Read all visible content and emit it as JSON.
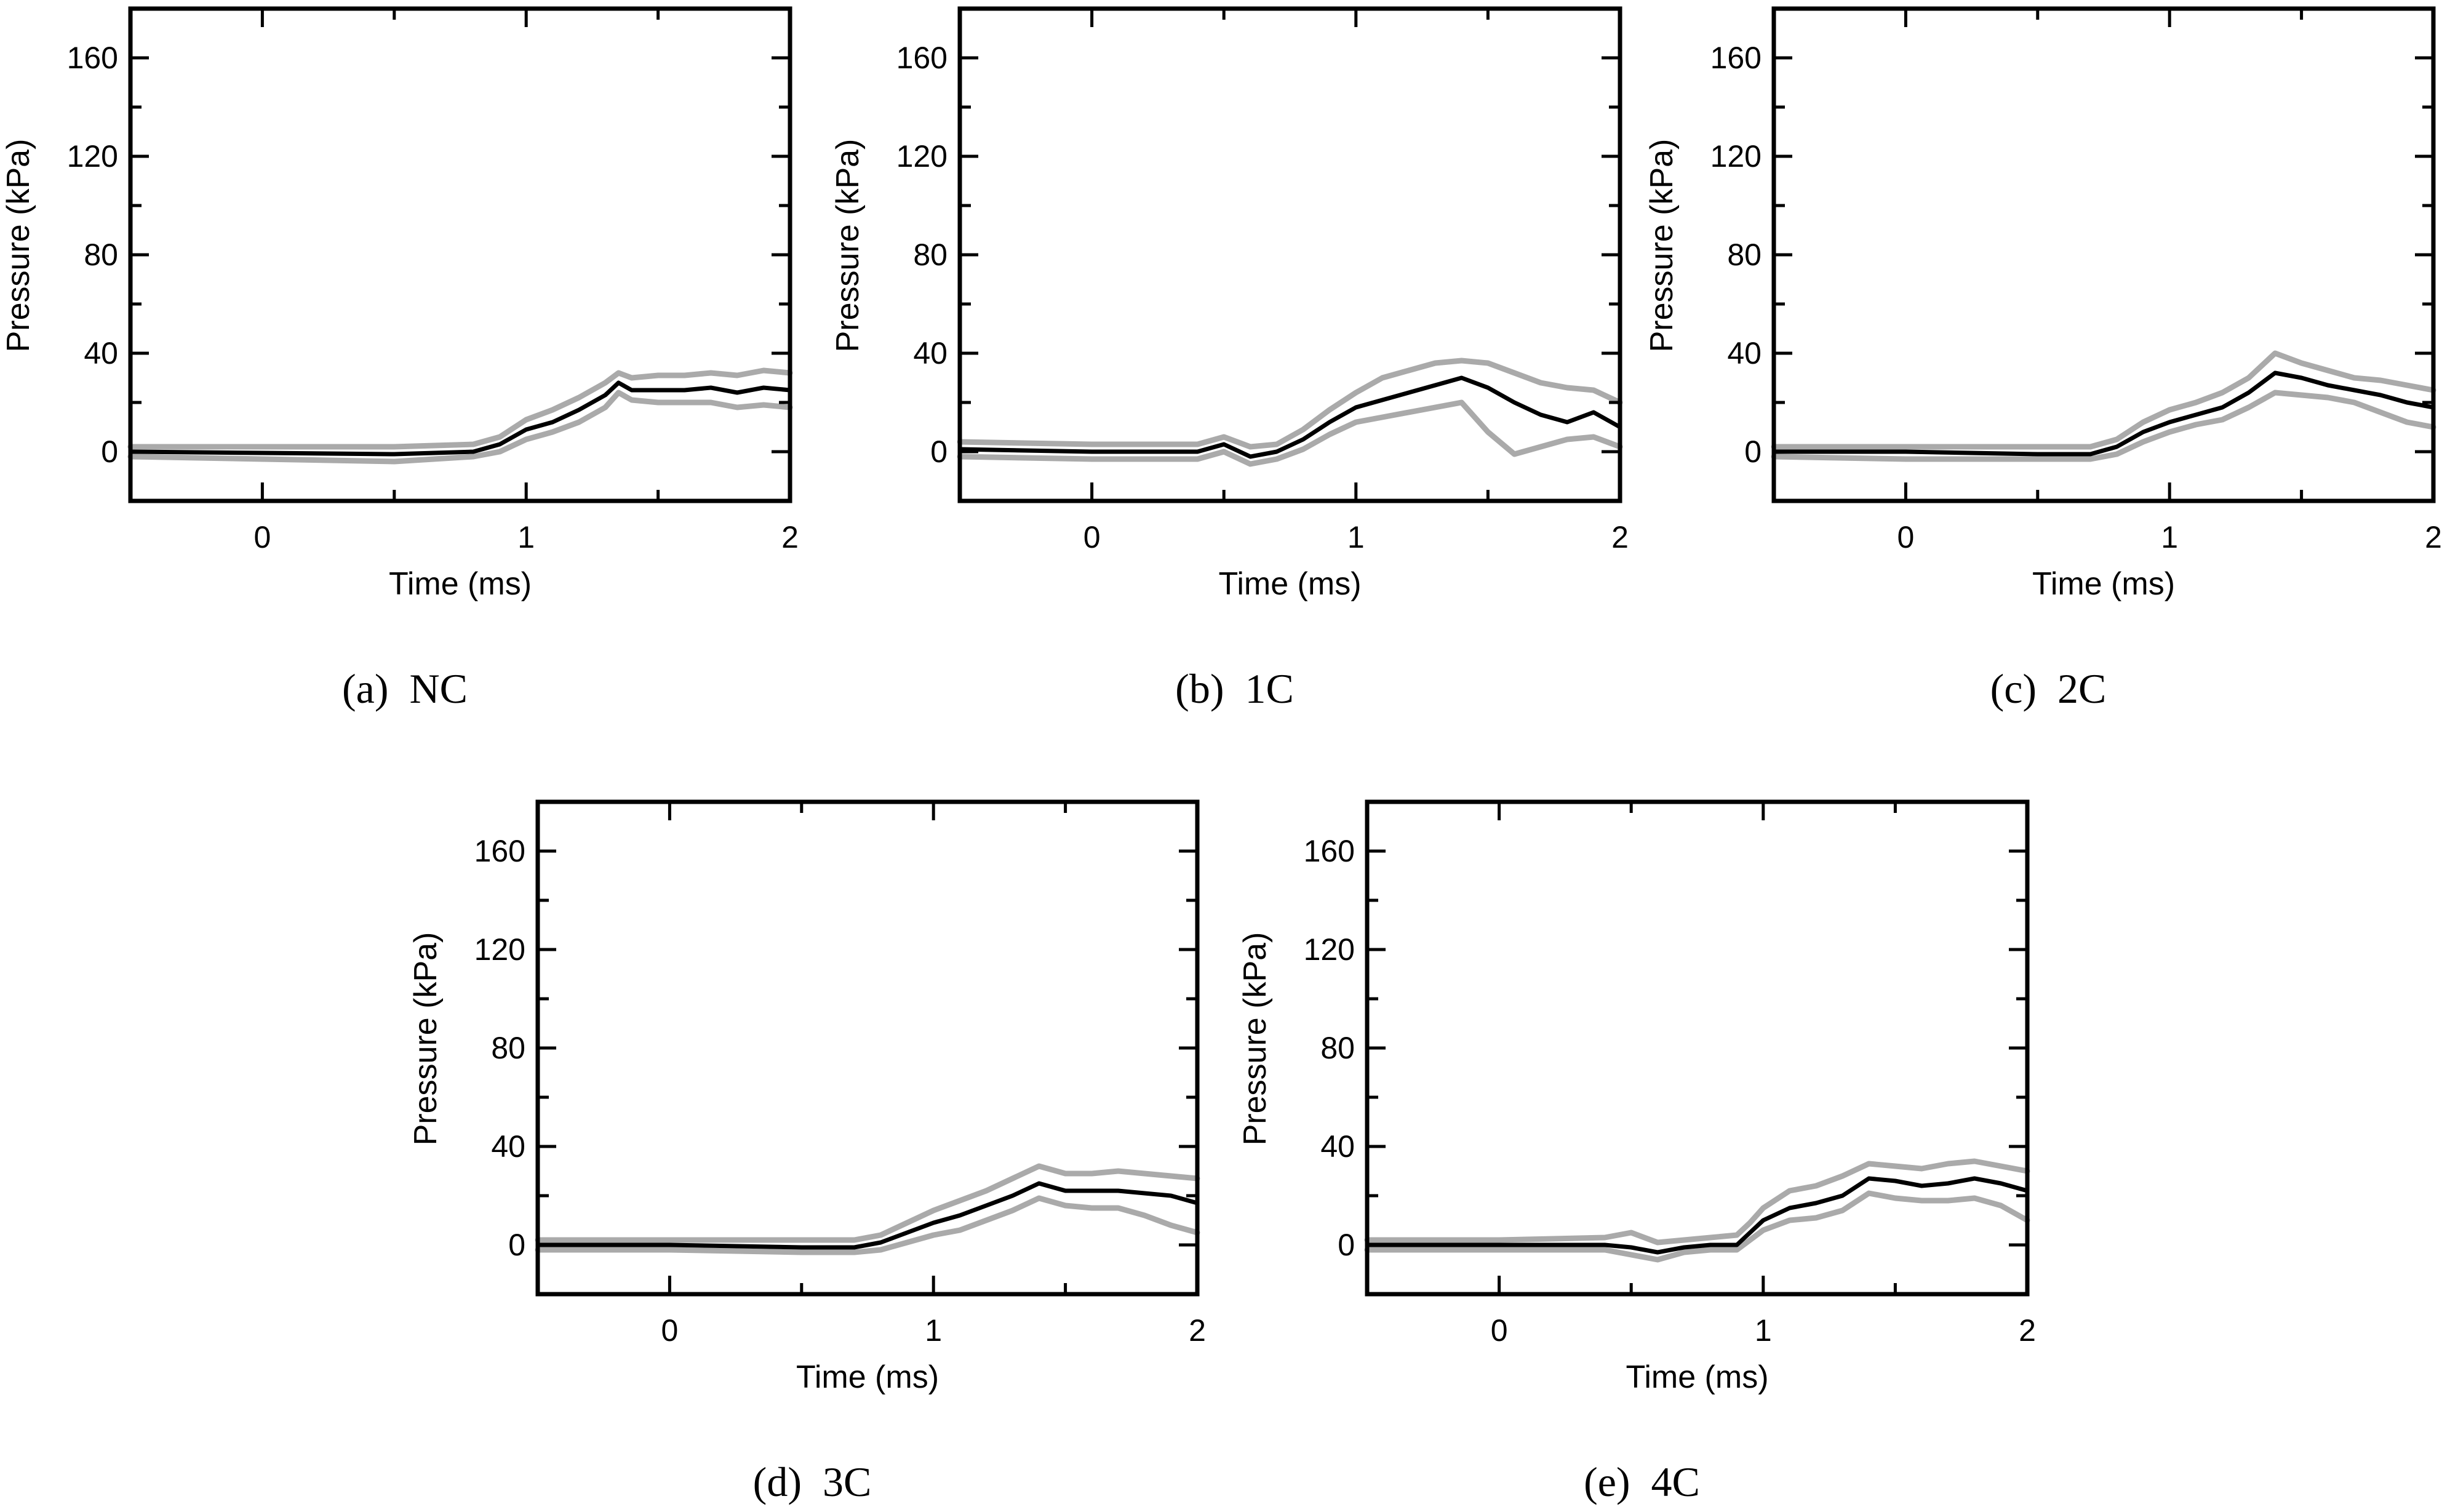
{
  "chart_data": [
    {
      "type": "line",
      "panel": "a",
      "caption": "(a)  NC",
      "xlabel": "Time (ms)",
      "ylabel": "Pressure (kPa)",
      "xlim": [
        -0.5,
        2
      ],
      "ylim": [
        -20,
        180
      ],
      "xticks": [
        0,
        1,
        2
      ],
      "yticks": [
        0,
        40,
        80,
        120,
        160
      ],
      "grid": false,
      "series": [
        {
          "name": "mean",
          "color": "#000000",
          "x": [
            -0.5,
            0,
            0.5,
            0.8,
            0.9,
            1.0,
            1.1,
            1.2,
            1.3,
            1.35,
            1.4,
            1.5,
            1.6,
            1.7,
            1.8,
            1.9,
            2.0
          ],
          "values": [
            0,
            -0.5,
            -1,
            0,
            3,
            9,
            12,
            17,
            23,
            28,
            25,
            25,
            25,
            26,
            24,
            26,
            25
          ]
        },
        {
          "name": "band-upper",
          "color": "#aaaaaa",
          "x": [
            -0.5,
            0,
            0.5,
            0.8,
            0.9,
            1.0,
            1.1,
            1.2,
            1.3,
            1.35,
            1.4,
            1.5,
            1.6,
            1.7,
            1.8,
            1.9,
            2.0
          ],
          "values": [
            2,
            2,
            2,
            3,
            6,
            13,
            17,
            22,
            28,
            32,
            30,
            31,
            31,
            32,
            31,
            33,
            32
          ]
        },
        {
          "name": "band-lower",
          "color": "#aaaaaa",
          "x": [
            -0.5,
            0,
            0.5,
            0.8,
            0.9,
            1.0,
            1.1,
            1.2,
            1.3,
            1.35,
            1.4,
            1.5,
            1.6,
            1.7,
            1.8,
            1.9,
            2.0
          ],
          "values": [
            -2,
            -3,
            -4,
            -2,
            0,
            5,
            8,
            12,
            18,
            24,
            21,
            20,
            20,
            20,
            18,
            19,
            18
          ]
        }
      ]
    },
    {
      "type": "line",
      "panel": "b",
      "caption": "(b)  1C",
      "xlabel": "Time (ms)",
      "ylabel": "Pressure (kPa)",
      "xlim": [
        -0.5,
        2
      ],
      "ylim": [
        -20,
        180
      ],
      "xticks": [
        0,
        1,
        2
      ],
      "yticks": [
        0,
        40,
        80,
        120,
        160
      ],
      "grid": false,
      "series": [
        {
          "name": "mean",
          "color": "#000000",
          "x": [
            -0.5,
            0,
            0.4,
            0.5,
            0.6,
            0.7,
            0.8,
            0.9,
            1.0,
            1.1,
            1.2,
            1.3,
            1.4,
            1.5,
            1.6,
            1.7,
            1.8,
            1.9,
            2.0
          ],
          "values": [
            1,
            0,
            0,
            3,
            -2,
            0,
            5,
            12,
            18,
            21,
            24,
            27,
            30,
            26,
            20,
            15,
            12,
            16,
            10
          ]
        },
        {
          "name": "band-upper",
          "color": "#aaaaaa",
          "x": [
            -0.5,
            0,
            0.4,
            0.5,
            0.6,
            0.7,
            0.8,
            0.9,
            1.0,
            1.1,
            1.2,
            1.3,
            1.4,
            1.5,
            1.6,
            1.7,
            1.8,
            1.9,
            2.0
          ],
          "values": [
            4,
            3,
            3,
            6,
            2,
            3,
            9,
            17,
            24,
            30,
            33,
            36,
            37,
            36,
            32,
            28,
            26,
            25,
            20
          ]
        },
        {
          "name": "band-lower",
          "color": "#aaaaaa",
          "x": [
            -0.5,
            0,
            0.4,
            0.5,
            0.6,
            0.7,
            0.8,
            0.9,
            1.0,
            1.1,
            1.2,
            1.3,
            1.4,
            1.5,
            1.6,
            1.7,
            1.8,
            1.9,
            2.0
          ],
          "values": [
            -2,
            -3,
            -3,
            0,
            -5,
            -3,
            1,
            7,
            12,
            14,
            16,
            18,
            20,
            8,
            -1,
            2,
            5,
            6,
            2
          ]
        }
      ]
    },
    {
      "type": "line",
      "panel": "c",
      "caption": "(c)  2C",
      "xlabel": "Time (ms)",
      "ylabel": "Pressure (kPa)",
      "xlim": [
        -0.5,
        2
      ],
      "ylim": [
        -20,
        180
      ],
      "xticks": [
        0,
        1,
        2
      ],
      "yticks": [
        0,
        40,
        80,
        120,
        160
      ],
      "grid": false,
      "series": [
        {
          "name": "mean",
          "color": "#000000",
          "x": [
            -0.5,
            0,
            0.5,
            0.7,
            0.8,
            0.9,
            1.0,
            1.1,
            1.2,
            1.3,
            1.4,
            1.5,
            1.6,
            1.7,
            1.8,
            1.9,
            2.0
          ],
          "values": [
            0,
            0,
            -1,
            -1,
            2,
            8,
            12,
            15,
            18,
            24,
            32,
            30,
            27,
            25,
            23,
            20,
            18
          ]
        },
        {
          "name": "band-upper",
          "color": "#aaaaaa",
          "x": [
            -0.5,
            0,
            0.5,
            0.7,
            0.8,
            0.9,
            1.0,
            1.1,
            1.2,
            1.3,
            1.4,
            1.5,
            1.6,
            1.7,
            1.8,
            1.9,
            2.0
          ],
          "values": [
            2,
            2,
            2,
            2,
            5,
            12,
            17,
            20,
            24,
            30,
            40,
            36,
            33,
            30,
            29,
            27,
            25
          ]
        },
        {
          "name": "band-lower",
          "color": "#aaaaaa",
          "x": [
            -0.5,
            0,
            0.5,
            0.7,
            0.8,
            0.9,
            1.0,
            1.1,
            1.2,
            1.3,
            1.4,
            1.5,
            1.6,
            1.7,
            1.8,
            1.9,
            2.0
          ],
          "values": [
            -2,
            -3,
            -3,
            -3,
            -1,
            4,
            8,
            11,
            13,
            18,
            24,
            23,
            22,
            20,
            16,
            12,
            10
          ]
        }
      ]
    },
    {
      "type": "line",
      "panel": "d",
      "caption": "(d)  3C",
      "xlabel": "Time (ms)",
      "ylabel": "Pressure (kPa)",
      "xlim": [
        -0.5,
        2
      ],
      "ylim": [
        -20,
        180
      ],
      "xticks": [
        0,
        1,
        2
      ],
      "yticks": [
        0,
        40,
        80,
        120,
        160
      ],
      "grid": false,
      "series": [
        {
          "name": "mean",
          "color": "#000000",
          "x": [
            -0.5,
            0,
            0.5,
            0.7,
            0.8,
            0.9,
            1.0,
            1.1,
            1.2,
            1.3,
            1.4,
            1.5,
            1.6,
            1.7,
            1.8,
            1.9,
            2.0
          ],
          "values": [
            0,
            0,
            -1,
            -1,
            1,
            5,
            9,
            12,
            16,
            20,
            25,
            22,
            22,
            22,
            21,
            20,
            17
          ]
        },
        {
          "name": "band-upper",
          "color": "#aaaaaa",
          "x": [
            -0.5,
            0,
            0.5,
            0.7,
            0.8,
            0.9,
            1.0,
            1.1,
            1.2,
            1.3,
            1.4,
            1.5,
            1.6,
            1.7,
            1.8,
            1.9,
            2.0
          ],
          "values": [
            2,
            2,
            2,
            2,
            4,
            9,
            14,
            18,
            22,
            27,
            32,
            29,
            29,
            30,
            29,
            28,
            27
          ]
        },
        {
          "name": "band-lower",
          "color": "#aaaaaa",
          "x": [
            -0.5,
            0,
            0.5,
            0.7,
            0.8,
            0.9,
            1.0,
            1.1,
            1.2,
            1.3,
            1.4,
            1.5,
            1.6,
            1.7,
            1.8,
            1.9,
            2.0
          ],
          "values": [
            -2,
            -2,
            -3,
            -3,
            -2,
            1,
            4,
            6,
            10,
            14,
            19,
            16,
            15,
            15,
            12,
            8,
            5
          ]
        }
      ]
    },
    {
      "type": "line",
      "panel": "e",
      "caption": "(e)  4C",
      "xlabel": "Time (ms)",
      "ylabel": "Pressure (kPa)",
      "xlim": [
        -0.5,
        2
      ],
      "ylim": [
        -20,
        180
      ],
      "xticks": [
        0,
        1,
        2
      ],
      "yticks": [
        0,
        40,
        80,
        120,
        160
      ],
      "grid": false,
      "series": [
        {
          "name": "mean",
          "color": "#000000",
          "x": [
            -0.5,
            0,
            0.4,
            0.5,
            0.6,
            0.7,
            0.8,
            0.9,
            0.95,
            1.0,
            1.1,
            1.2,
            1.3,
            1.4,
            1.5,
            1.6,
            1.7,
            1.8,
            1.9,
            2.0
          ],
          "values": [
            0,
            0,
            0,
            -1,
            -3,
            -1,
            0,
            0,
            5,
            10,
            15,
            17,
            20,
            27,
            26,
            24,
            25,
            27,
            25,
            22
          ]
        },
        {
          "name": "band-upper",
          "color": "#aaaaaa",
          "x": [
            -0.5,
            0,
            0.4,
            0.5,
            0.6,
            0.7,
            0.8,
            0.9,
            0.95,
            1.0,
            1.1,
            1.2,
            1.3,
            1.4,
            1.5,
            1.6,
            1.7,
            1.8,
            1.9,
            2.0
          ],
          "values": [
            2,
            2,
            3,
            5,
            1,
            2,
            3,
            4,
            9,
            15,
            22,
            24,
            28,
            33,
            32,
            31,
            33,
            34,
            32,
            30
          ]
        },
        {
          "name": "band-lower",
          "color": "#aaaaaa",
          "x": [
            -0.5,
            0,
            0.4,
            0.5,
            0.6,
            0.7,
            0.8,
            0.9,
            0.95,
            1.0,
            1.1,
            1.2,
            1.3,
            1.4,
            1.5,
            1.6,
            1.7,
            1.8,
            1.9,
            2.0
          ],
          "values": [
            -2,
            -2,
            -2,
            -4,
            -6,
            -3,
            -2,
            -2,
            2,
            6,
            10,
            11,
            14,
            21,
            19,
            18,
            18,
            19,
            16,
            10
          ]
        }
      ]
    }
  ]
}
